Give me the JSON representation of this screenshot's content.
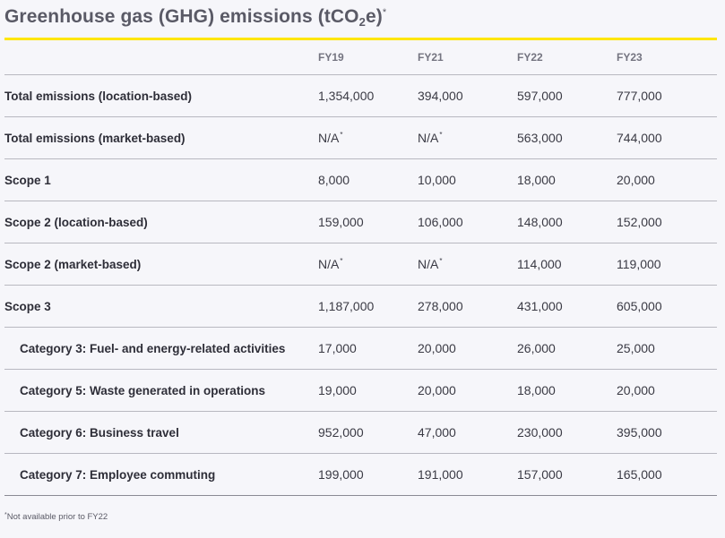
{
  "title": {
    "main": "Greenhouse gas (GHG) emissions (tCO",
    "subscript": "2",
    "tail": "e)",
    "superscript": "*"
  },
  "colors": {
    "accent": "#ffe600",
    "text": "#2e2e38",
    "muted": "#747480"
  },
  "table": {
    "headers": [
      "",
      "FY19",
      "FY21",
      "FY22",
      "FY23"
    ],
    "rows": [
      {
        "label": "Total emissions (location-based)",
        "indent": false,
        "values": [
          "1,354,000",
          "394,000",
          "597,000",
          "777,000"
        ]
      },
      {
        "label": "Total emissions (market-based)",
        "indent": false,
        "values": [
          "N/A",
          "N/A",
          "563,000",
          "744,000"
        ]
      },
      {
        "label": "Scope 1",
        "indent": false,
        "values": [
          "8,000",
          "10,000",
          "18,000",
          "20,000"
        ]
      },
      {
        "label": "Scope 2 (location-based)",
        "indent": false,
        "values": [
          "159,000",
          "106,000",
          "148,000",
          "152,000"
        ]
      },
      {
        "label": "Scope 2 (market-based)",
        "indent": false,
        "values": [
          "N/A",
          "N/A",
          "114,000",
          "119,000"
        ]
      },
      {
        "label": "Scope 3",
        "indent": false,
        "values": [
          "1,187,000",
          "278,000",
          "431,000",
          "605,000"
        ]
      },
      {
        "label": "Category 3: Fuel- and energy-related activities",
        "indent": true,
        "values": [
          "17,000",
          "20,000",
          "26,000",
          "25,000"
        ]
      },
      {
        "label": "Category 5: Waste generated in operations",
        "indent": true,
        "values": [
          "19,000",
          "20,000",
          "18,000",
          "20,000"
        ]
      },
      {
        "label": "Category 6: Business travel",
        "indent": true,
        "values": [
          "952,000",
          "47,000",
          "230,000",
          "395,000"
        ]
      },
      {
        "label": "Category 7: Employee commuting",
        "indent": true,
        "values": [
          "199,000",
          "191,000",
          "157,000",
          "165,000"
        ]
      }
    ],
    "na_marker": "*"
  },
  "footnote": {
    "marker": "*",
    "text": "Not available prior to FY22"
  }
}
